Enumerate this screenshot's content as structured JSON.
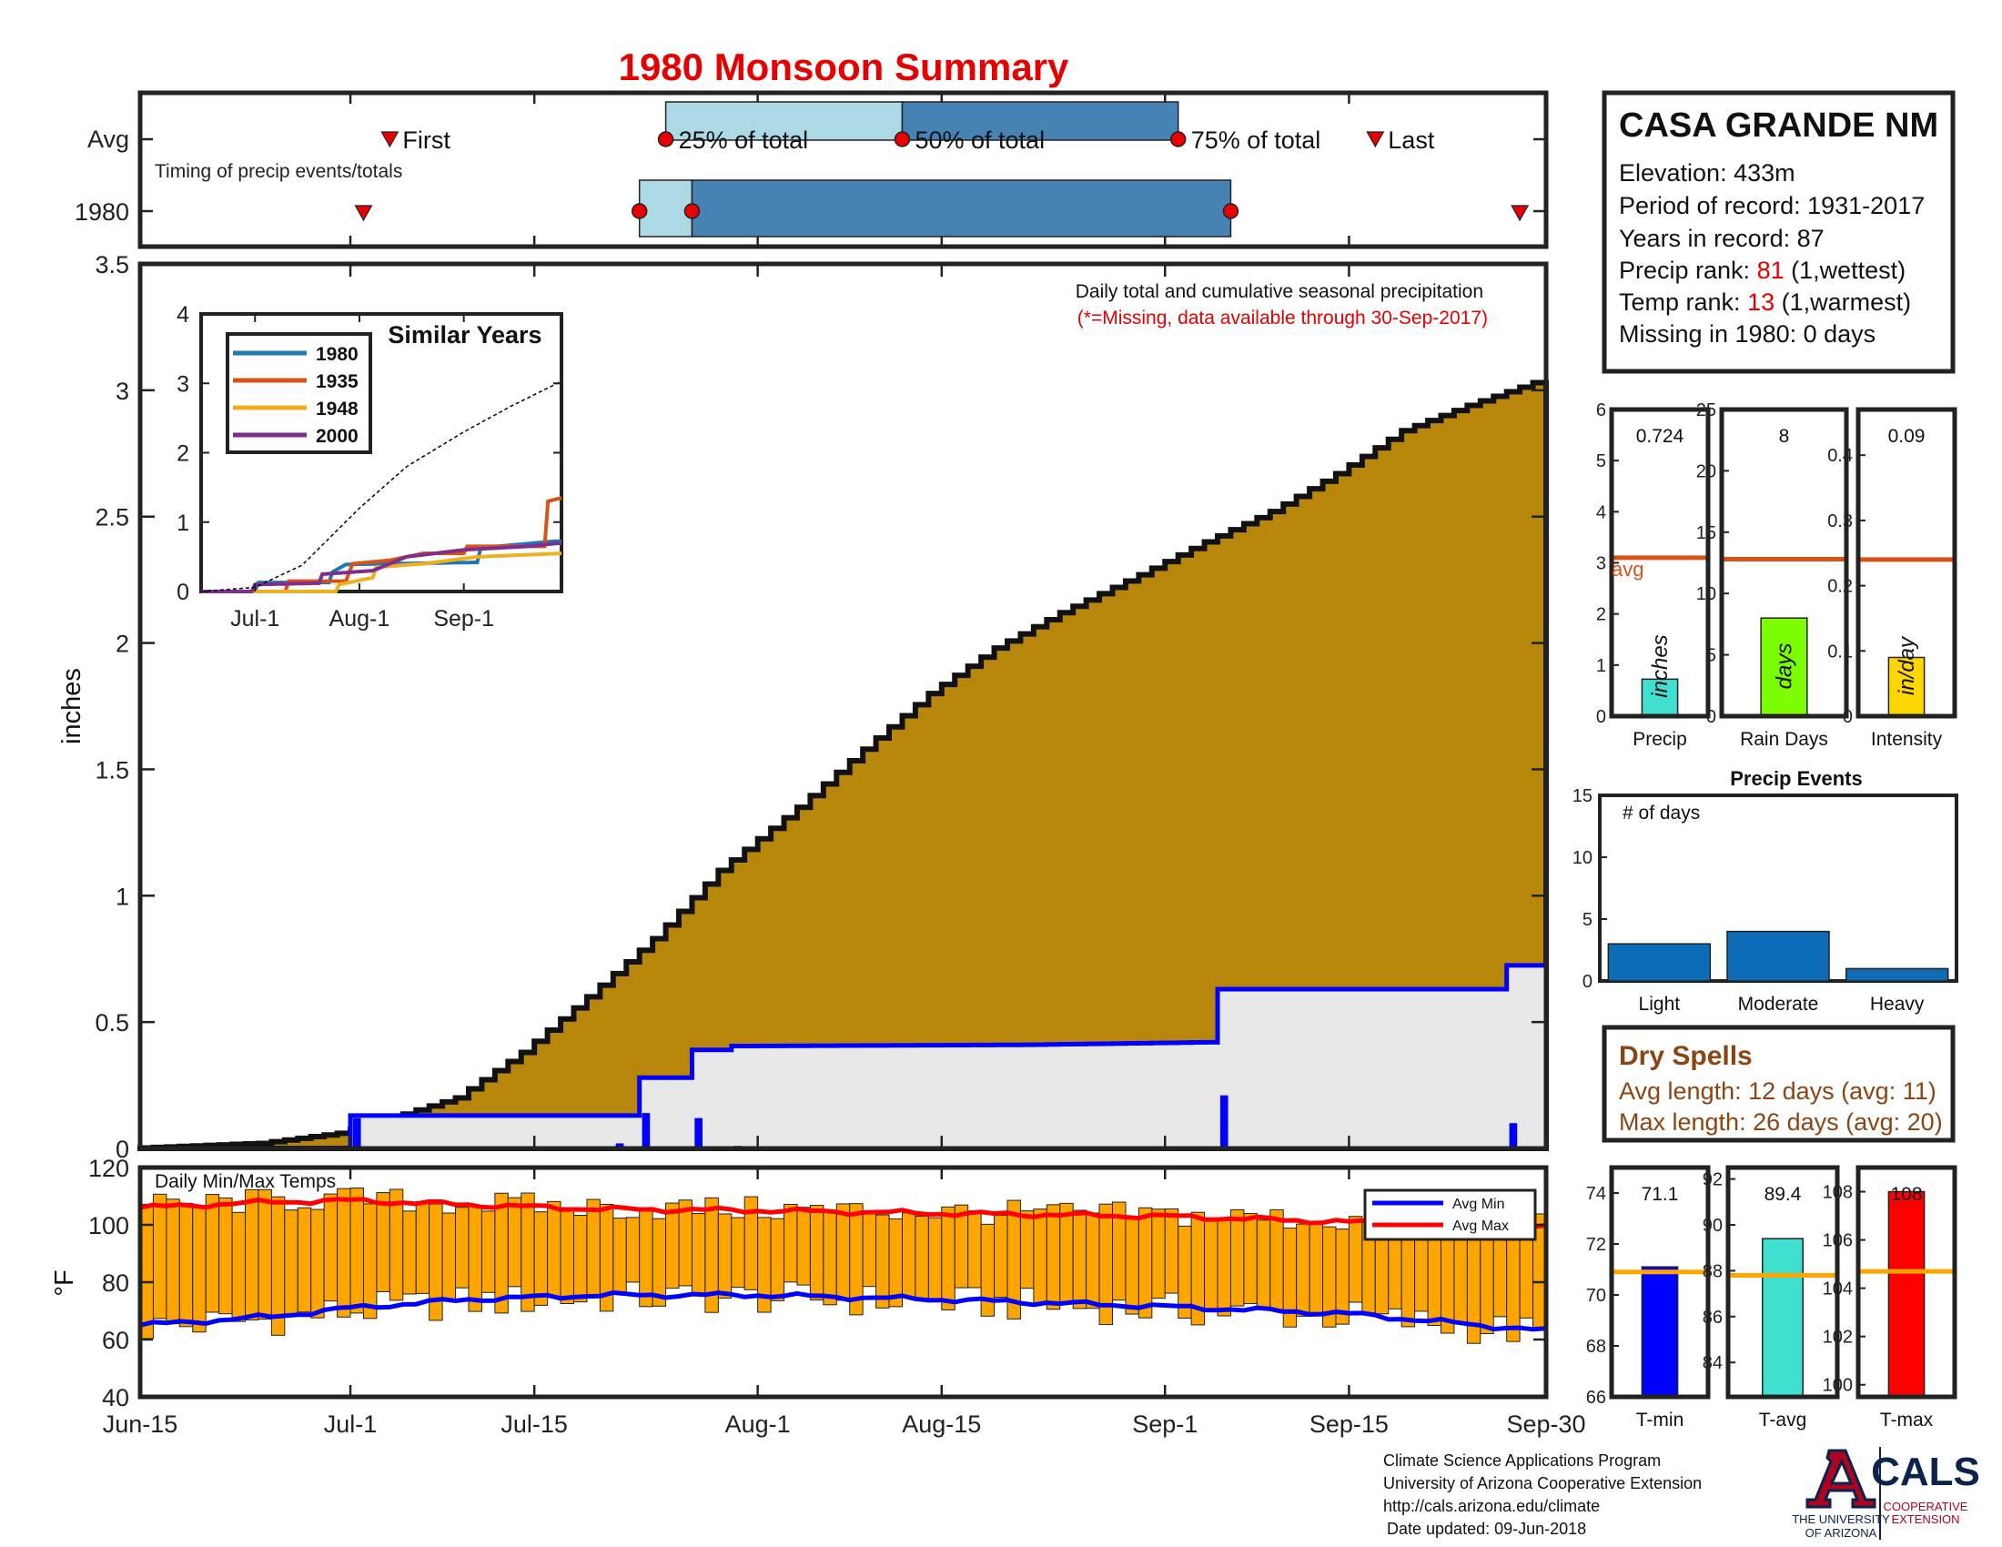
{
  "title": "1980 Monsoon Summary",
  "timing": {
    "row_labels": [
      "Avg",
      "1980"
    ],
    "subtitle": "Timing of precip events/totals",
    "first_label": "First",
    "last_label": "Last",
    "p25_label": "25% of total",
    "p50_label": "50% of total",
    "p75_label": "75% of total",
    "avg": {
      "first": "2020-07-04",
      "p25": "2020-07-25",
      "p50": "2020-08-12",
      "p75": "2020-09-02",
      "last": "2020-09-17"
    },
    "yr": {
      "first": "2020-07-02",
      "p25": "2020-07-23",
      "p50": "2020-07-27",
      "p75": "2020-09-06",
      "last": "2020-09-28"
    },
    "colors": {
      "light": "#add8e6",
      "dark": "#4682b4",
      "marker": "#e60000"
    }
  },
  "station": {
    "name": "CASA GRANDE NM",
    "elevation": "Elevation: 433m",
    "period": "Period of record: 1931-2017",
    "years": "Years in record: 87",
    "precip_rank_prefix": "Precip rank:",
    "precip_rank": "81",
    "precip_rank_suffix": "(1,wettest)",
    "temp_rank_prefix": "Temp rank:",
    "temp_rank": "13",
    "temp_rank_suffix": "(1,warmest)",
    "missing": "Missing in 1980: 0 days"
  },
  "main_chart": {
    "note1": "Daily total and cumulative seasonal precipitation",
    "note2": "(*=Missing, data available through 30-Sep-2017)",
    "ylabel": "inches",
    "yticks": [
      "0",
      "0.5",
      "1",
      "1.5",
      "2",
      "2.5",
      "3",
      "3.5"
    ],
    "xticks": [
      "Jun-15",
      "Jul-1",
      "Jul-15",
      "Aug-1",
      "Aug-15",
      "Sep-1",
      "Sep-15",
      "Sep-30"
    ]
  },
  "inset": {
    "title": "Similar Years",
    "xticks": [
      "Jul-1",
      "Aug-1",
      "Sep-1"
    ],
    "yticks": [
      "0",
      "1",
      "2",
      "3",
      "4"
    ]
  },
  "temps": {
    "label": "Daily Min/Max Temps",
    "ylabel": "°F",
    "yticks": [
      "40",
      "60",
      "80",
      "100",
      "120"
    ],
    "legend_min": "Avg Min",
    "legend_max": "Avg Max"
  },
  "stat_panels": {
    "precip": {
      "label": "Precip",
      "unit": "inches",
      "value_text": "0.724",
      "avg_label": "avg",
      "yticks": [
        "0",
        "1",
        "2",
        "3",
        "4",
        "5",
        "6"
      ]
    },
    "rain_days": {
      "label": "Rain Days",
      "unit": "days",
      "value_text": "8",
      "yticks": [
        "0",
        "5",
        "10",
        "15",
        "20",
        "25"
      ]
    },
    "intensity": {
      "label": "Intensity",
      "unit": "in/day",
      "value_text": "0.09",
      "yticks": [
        "0",
        "0.1",
        "0.2",
        "0.3",
        "0.4"
      ]
    }
  },
  "events": {
    "title": "Precip Events",
    "ylabel": "# of days",
    "yticks": [
      "0",
      "5",
      "10",
      "15"
    ]
  },
  "dry_spells": {
    "title": "Dry Spells",
    "avg": "Avg length: 12 days (avg: 11)",
    "max": "Max length: 26 days (avg: 20)"
  },
  "temp_panels": {
    "tmin": {
      "label": "T-min",
      "value_text": "71.1",
      "yticks": [
        "66",
        "68",
        "70",
        "72",
        "74"
      ]
    },
    "tavg": {
      "label": "T-avg",
      "value_text": "89.4",
      "yticks": [
        "84",
        "86",
        "88",
        "90",
        "92"
      ]
    },
    "tmax": {
      "label": "T-max",
      "value_text": "108",
      "yticks": [
        "100",
        "102",
        "104",
        "106",
        "108"
      ]
    }
  },
  "footer": {
    "line1": "Climate Science Applications Program",
    "line2": "University of Arizona Cooperative Extension",
    "line3": "http://cals.arizona.edu/climate",
    "line4": "Date updated: 09-Jun-2018",
    "logo_ua_line1": "THE UNIVERSITY",
    "logo_ua_line2": "OF ARIZONA",
    "logo_cals": "CALS",
    "logo_coop1": "COOPERATIVE",
    "logo_coop2": "EXTENSION"
  },
  "chart_data": [
    {
      "type": "area",
      "title": "Daily total and cumulative seasonal precipitation",
      "ylabel": "inches",
      "ylim": [
        0,
        3.5
      ],
      "xlim": [
        "2020-06-15",
        "2020-09-30"
      ],
      "series": [
        {
          "name": "Avg",
          "color": "#b8860b",
          "points": [
            [
              "2020-06-15",
              0
            ],
            [
              "2020-06-20",
              0.01
            ],
            [
              "2020-06-25",
              0.02
            ],
            [
              "2020-07-01",
              0.06
            ],
            [
              "2020-07-05",
              0.12
            ],
            [
              "2020-07-10",
              0.2
            ],
            [
              "2020-07-15",
              0.38
            ],
            [
              "2020-07-20",
              0.6
            ],
            [
              "2020-07-25",
              0.83
            ],
            [
              "2020-07-30",
              1.1
            ],
            [
              "2020-08-05",
              1.35
            ],
            [
              "2020-08-10",
              1.58
            ],
            [
              "2020-08-15",
              1.8
            ],
            [
              "2020-08-20",
              1.98
            ],
            [
              "2020-08-25",
              2.12
            ],
            [
              "2020-08-31",
              2.27
            ],
            [
              "2020-09-05",
              2.4
            ],
            [
              "2020-09-10",
              2.52
            ],
            [
              "2020-09-15",
              2.67
            ],
            [
              "2020-09-20",
              2.84
            ],
            [
              "2020-09-25",
              2.94
            ],
            [
              "2020-09-30",
              3.03
            ]
          ]
        },
        {
          "name": "1980",
          "color": "#0000ff",
          "points": [
            [
              "2020-06-15",
              0
            ],
            [
              "2020-07-01",
              0
            ],
            [
              "2020-07-02",
              0.13
            ],
            [
              "2020-07-23",
              0.13
            ],
            [
              "2020-07-24",
              0.28
            ],
            [
              "2020-07-27",
              0.28
            ],
            [
              "2020-07-28",
              0.39
            ],
            [
              "2020-07-30",
              0.39
            ],
            [
              "2020-07-31",
              0.405
            ],
            [
              "2020-08-22",
              0.41
            ],
            [
              "2020-09-05",
              0.42
            ],
            [
              "2020-09-06",
              0.63
            ],
            [
              "2020-09-27",
              0.63
            ],
            [
              "2020-09-28",
              0.724
            ],
            [
              "2020-09-30",
              0.724
            ]
          ]
        }
      ],
      "daily_bars": [
        [
          "2020-07-02",
          0.12
        ],
        [
          "2020-07-22",
          0.02
        ],
        [
          "2020-07-24",
          0.14
        ],
        [
          "2020-07-28",
          0.12
        ],
        [
          "2020-07-31",
          0.01
        ],
        [
          "2020-09-06",
          0.21
        ],
        [
          "2020-09-28",
          0.1
        ]
      ]
    },
    {
      "type": "line",
      "title": "Similar Years",
      "ylim": [
        0,
        4
      ],
      "series": [
        {
          "name": "1980",
          "color": "#1f77b4",
          "points": [
            [
              "2020-06-15",
              0
            ],
            [
              "2020-07-01",
              0
            ],
            [
              "2020-07-02",
              0.13
            ],
            [
              "2020-07-23",
              0.13
            ],
            [
              "2020-07-24",
              0.28
            ],
            [
              "2020-07-28",
              0.39
            ],
            [
              "2020-09-05",
              0.42
            ],
            [
              "2020-09-06",
              0.63
            ],
            [
              "2020-09-28",
              0.724
            ],
            [
              "2020-09-30",
              0.724
            ]
          ]
        },
        {
          "name": "1935",
          "color": "#d95319",
          "points": [
            [
              "2020-06-15",
              0
            ],
            [
              "2020-07-10",
              0
            ],
            [
              "2020-07-11",
              0.15
            ],
            [
              "2020-07-28",
              0.15
            ],
            [
              "2020-07-30",
              0.4
            ],
            [
              "2020-08-10",
              0.45
            ],
            [
              "2020-08-20",
              0.55
            ],
            [
              "2020-09-01",
              0.55
            ],
            [
              "2020-09-02",
              0.65
            ],
            [
              "2020-09-25",
              0.65
            ],
            [
              "2020-09-26",
              1.3
            ],
            [
              "2020-09-30",
              1.35
            ]
          ]
        },
        {
          "name": "1948",
          "color": "#edb120",
          "points": [
            [
              "2020-06-15",
              0
            ],
            [
              "2020-07-25",
              0
            ],
            [
              "2020-07-26",
              0.1
            ],
            [
              "2020-08-05",
              0.2
            ],
            [
              "2020-08-06",
              0.35
            ],
            [
              "2020-08-20",
              0.4
            ],
            [
              "2020-09-05",
              0.5
            ],
            [
              "2020-09-30",
              0.55
            ]
          ]
        },
        {
          "name": "2000",
          "color": "#7e2f8e",
          "points": [
            [
              "2020-06-15",
              0
            ],
            [
              "2020-06-30",
              0
            ],
            [
              "2020-07-01",
              0.1
            ],
            [
              "2020-07-20",
              0.12
            ],
            [
              "2020-07-21",
              0.25
            ],
            [
              "2020-08-05",
              0.3
            ],
            [
              "2020-08-15",
              0.5
            ],
            [
              "2020-09-01",
              0.6
            ],
            [
              "2020-09-20",
              0.65
            ],
            [
              "2020-09-30",
              0.7
            ]
          ]
        },
        {
          "name": "Avg",
          "color": "#000000",
          "points": [
            [
              "2020-06-15",
              0
            ],
            [
              "2020-07-01",
              0.06
            ],
            [
              "2020-07-15",
              0.38
            ],
            [
              "2020-08-01",
              1.2
            ],
            [
              "2020-08-15",
              1.8
            ],
            [
              "2020-09-01",
              2.3
            ],
            [
              "2020-09-15",
              2.67
            ],
            [
              "2020-09-30",
              3.03
            ]
          ]
        }
      ]
    },
    {
      "type": "bar",
      "title": "Daily Min/Max Temps",
      "ylabel": "°F",
      "ylim": [
        40,
        120
      ],
      "bar_color": "#ffa500",
      "avg_min": [
        [
          "2020-06-15",
          65
        ],
        [
          "2020-06-25",
          68
        ],
        [
          "2020-07-01",
          71
        ],
        [
          "2020-07-10",
          74
        ],
        [
          "2020-07-20",
          75.5
        ],
        [
          "2020-08-01",
          75.5
        ],
        [
          "2020-08-15",
          74
        ],
        [
          "2020-09-01",
          71.5
        ],
        [
          "2020-09-15",
          69
        ],
        [
          "2020-09-30",
          63
        ]
      ],
      "avg_max": [
        [
          "2020-06-15",
          106
        ],
        [
          "2020-06-25",
          108
        ],
        [
          "2020-07-01",
          108.5
        ],
        [
          "2020-07-10",
          107
        ],
        [
          "2020-07-20",
          105.5
        ],
        [
          "2020-08-01",
          105
        ],
        [
          "2020-08-15",
          104
        ],
        [
          "2020-09-01",
          103
        ],
        [
          "2020-09-15",
          101
        ],
        [
          "2020-09-30",
          99
        ]
      ]
    },
    {
      "type": "bar",
      "title": "Precip",
      "values": [
        0.724
      ],
      "avg": 3.1,
      "ylim": [
        0,
        6
      ],
      "color": "#40e0d0"
    },
    {
      "type": "bar",
      "title": "Rain Days",
      "values": [
        8
      ],
      "avg": 12.8,
      "ylim": [
        0,
        25
      ],
      "color": "#7cfc00"
    },
    {
      "type": "bar",
      "title": "Intensity",
      "values": [
        0.09
      ],
      "avg": 0.24,
      "ylim": [
        0,
        0.47
      ],
      "color": "#ffd700"
    },
    {
      "type": "bar",
      "title": "Precip Events",
      "categories": [
        "Light",
        "Moderate",
        "Heavy"
      ],
      "values": [
        3,
        4,
        1
      ],
      "ylim": [
        0,
        15
      ],
      "color": "#0e6bb5"
    },
    {
      "type": "bar",
      "title": "T-min",
      "values": [
        71.1
      ],
      "avg": 70.9,
      "ylim": [
        66,
        75
      ],
      "color": "#0000ff"
    },
    {
      "type": "bar",
      "title": "T-avg",
      "values": [
        89.4
      ],
      "avg": 87.8,
      "ylim": [
        82.5,
        92.5
      ],
      "color": "#40e0d0"
    },
    {
      "type": "bar",
      "title": "T-max",
      "values": [
        108
      ],
      "avg": 104.7,
      "ylim": [
        99.5,
        109
      ],
      "color": "#ff0000"
    }
  ]
}
